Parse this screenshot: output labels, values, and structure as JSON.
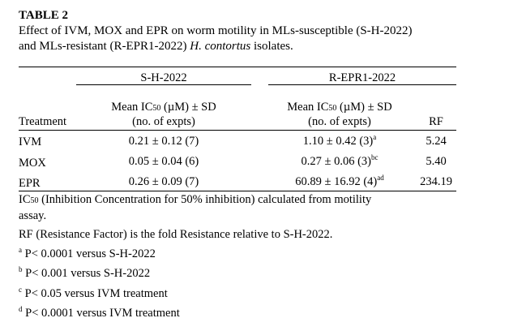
{
  "table_label": "TABLE 2",
  "caption": {
    "line1": "Effect of IVM, MOX and EPR on worm motility in MLs-susceptible (S-H-2022)",
    "line2_prefix": "and MLs-resistant (R-EPR1-2022) ",
    "line2_italic": "H. contortus",
    "line2_suffix": " isolates."
  },
  "groups": {
    "susceptible": "S-H-2022",
    "resistant": "R-EPR1-2022"
  },
  "columns": {
    "treatment": "Treatment",
    "mean_prefix": "Mean IC",
    "mean_sub": "50",
    "mean_suffix": " (µM) ± SD",
    "n_expts": "(no. of expts)",
    "rf": "RF"
  },
  "rows": [
    {
      "treatment": "IVM",
      "s_value": "0.21 ± 0.12 (7)",
      "r_value": "1.10 ± 0.42 (3)",
      "r_sup": "a",
      "rf": "5.24"
    },
    {
      "treatment": "MOX",
      "s_value": "0.05 ± 0.04 (6)",
      "r_value": "0.27 ± 0.06 (3)",
      "r_sup": "bc",
      "rf": "5.40"
    },
    {
      "treatment": "EPR",
      "s_value": "0.26 ± 0.09 (7)",
      "r_value": "60.89 ± 16.92 (4)",
      "r_sup": "ad",
      "rf": "234.19"
    }
  ],
  "notes": {
    "ic50_prefix": "IC",
    "ic50_sub": "50",
    "ic50_line1": " (Inhibition Concentration for 50% inhibition) calculated from motility",
    "ic50_line2": "assay.",
    "rf": "RF (Resistance Factor) is the fold Resistance relative to S-H-2022.",
    "footnotes": [
      {
        "mark": "a",
        "text": " P< 0.0001 versus S-H-2022"
      },
      {
        "mark": "b",
        "text": " P< 0.001 versus S-H-2022"
      },
      {
        "mark": "c",
        "text": " P< 0.05 versus IVM treatment"
      },
      {
        "mark": "d",
        "text": " P< 0.0001 versus IVM treatment"
      }
    ]
  }
}
